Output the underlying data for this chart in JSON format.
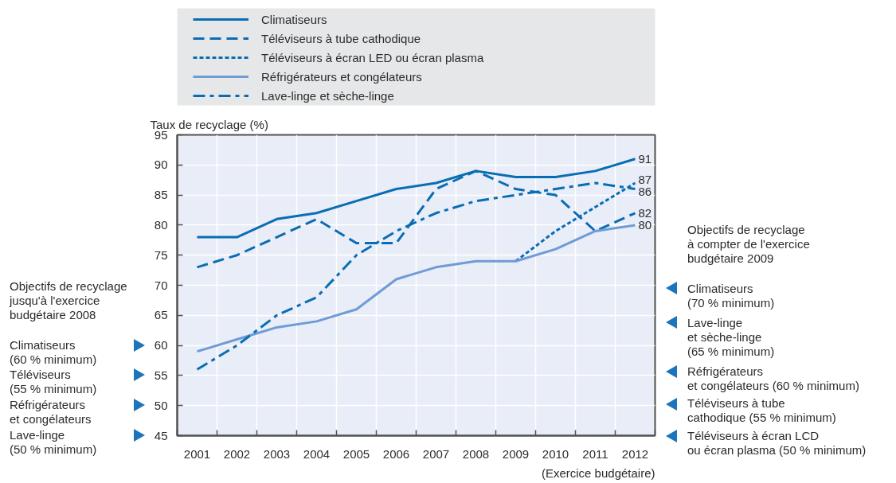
{
  "chart_data": {
    "type": "line",
    "xlabel": "(Exercice budgétaire)",
    "ylabel": "Taux de recyclage (%)",
    "categories": [
      "2001",
      "2002",
      "2003",
      "2004",
      "2005",
      "2006",
      "2007",
      "2008",
      "2009",
      "2010",
      "2011",
      "2012"
    ],
    "ylim": [
      45,
      95
    ],
    "yticks": [
      45,
      50,
      55,
      60,
      65,
      70,
      75,
      80,
      85,
      90,
      95
    ],
    "grid": true,
    "legend": "top",
    "series": [
      {
        "name": "Climatiseurs",
        "color": "#0a6db4",
        "line_style": "solid",
        "values": [
          78,
          78,
          81,
          82,
          84,
          86,
          87,
          89,
          88,
          88,
          89,
          91
        ],
        "value_labels": [
          null,
          null,
          null,
          null,
          null,
          null,
          null,
          null,
          null,
          null,
          null,
          "91"
        ]
      },
      {
        "name": "Téléviseurs à tube cathodique",
        "color": "#0a6db4",
        "line_style": "dashed",
        "values": [
          73,
          75,
          78,
          81,
          77,
          77,
          86,
          89,
          86,
          85,
          79,
          82
        ],
        "value_labels": [
          null,
          null,
          null,
          null,
          null,
          null,
          null,
          null,
          null,
          null,
          null,
          "82"
        ]
      },
      {
        "name": "Téléviseurs à écran LED ou écran plasma",
        "color": "#0a6db4",
        "line_style": "dotted",
        "values": [
          null,
          null,
          null,
          null,
          null,
          null,
          null,
          null,
          74,
          79,
          83,
          87
        ],
        "value_labels": [
          null,
          null,
          null,
          null,
          null,
          null,
          null,
          null,
          null,
          null,
          null,
          "87"
        ]
      },
      {
        "name": "Réfrigérateurs et congélateurs",
        "color": "#6f9bd6",
        "line_style": "solid",
        "values": [
          59,
          61,
          63,
          64,
          66,
          71,
          73,
          74,
          74,
          76,
          79,
          80
        ],
        "value_labels": [
          null,
          null,
          null,
          null,
          null,
          null,
          null,
          null,
          null,
          null,
          null,
          "80"
        ]
      },
      {
        "name": "Lave-linge et sèche-linge",
        "color": "#0a6db4",
        "line_style": "dashdot",
        "values": [
          56,
          60,
          65,
          68,
          75,
          79,
          82,
          84,
          85,
          86,
          87,
          86
        ],
        "value_labels": [
          null,
          null,
          null,
          null,
          null,
          null,
          null,
          null,
          null,
          null,
          null,
          "86"
        ]
      }
    ],
    "annotations": [
      "Objectifs de recyclage\njusqu'à l'exercice\nbudgétaire 2008",
      "Climatiseurs\n(60 % minimum)",
      "Téléviseurs\n(55 % minimum)",
      "Réfrigérateurs\net congélateurs",
      "Lave-linge\n(50 % minimum)",
      "Objectifs de recyclage\nà compter de l'exercice\nbudgétaire 2009",
      "Climatiseurs\n(70 % minimum)",
      "Lave-linge\net sèche-linge\n(65 % minimum)",
      "Réfrigérateurs\net congélateurs (60 % minimum)",
      "Téléviseurs à tube\ncathodique (55 % minimum)",
      "Téléviseurs à écran LCD\nou écran plasma (50 % minimum)"
    ]
  }
}
